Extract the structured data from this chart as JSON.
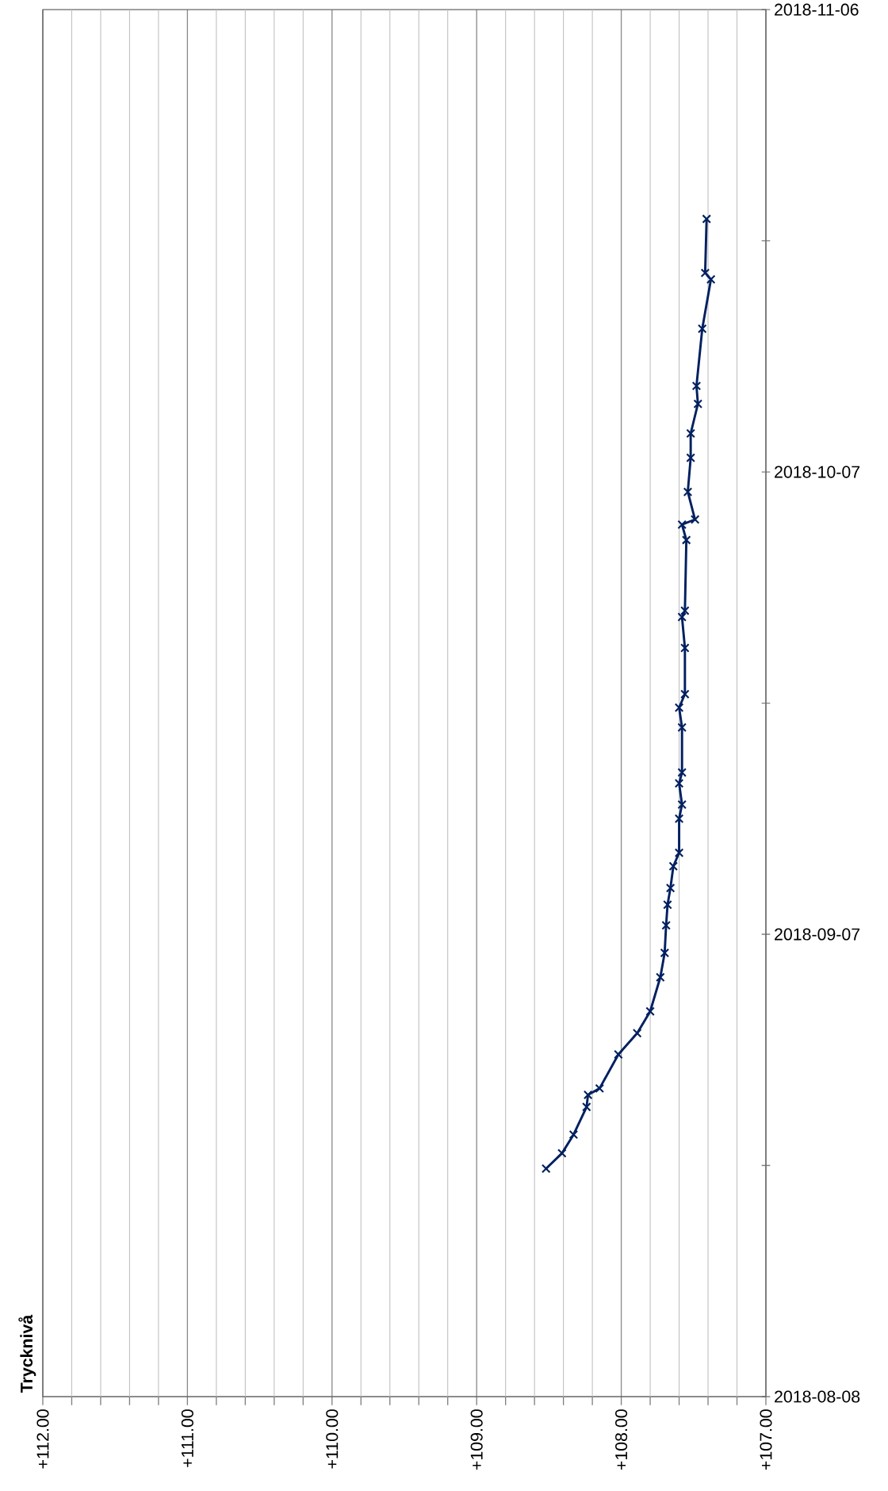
{
  "chart_data": {
    "type": "line",
    "orientation": "horizontal",
    "ylabel": "Trycknivå",
    "x": [
      "2018-08-22T19:00",
      "2018-08-23T19:00",
      "2018-08-25T00:00",
      "2018-08-26T19:00",
      "2018-08-27T14:00",
      "2018-08-28T00:00",
      "2018-08-30T05:00",
      "2018-08-31T14:00",
      "2018-09-02T00:00",
      "2018-09-04T05:00",
      "2018-09-05T19:00",
      "2018-09-07T14:00",
      "2018-09-08T22:00",
      "2018-09-10T00:00",
      "2018-09-11T10:00",
      "2018-09-12T07:00",
      "2018-09-14T12:00",
      "2018-09-15T10:00",
      "2018-09-16T19:00",
      "2018-09-17T12:00",
      "2018-09-20T10:00",
      "2018-09-21T17:00",
      "2018-09-22T14:00",
      "2018-09-25T14:00",
      "2018-09-27T14:00",
      "2018-09-28T00:00",
      "2018-10-02T14:00",
      "2018-10-03T14:00",
      "2018-10-03T22:00",
      "2018-10-05T17:00",
      "2018-10-07T22:00",
      "2018-10-09T12:00",
      "2018-10-11T10:00",
      "2018-10-12T14:00",
      "2018-10-16T07:00",
      "2018-10-19T12:00",
      "2018-10-19T22:00",
      "2018-10-23T10:00"
    ],
    "series": [
      {
        "color": "#002060",
        "values": [
          108.52,
          108.41,
          108.33,
          108.24,
          108.23,
          108.15,
          108.02,
          107.89,
          107.8,
          107.73,
          107.7,
          107.69,
          107.68,
          107.66,
          107.64,
          107.6,
          107.6,
          107.58,
          107.6,
          107.58,
          107.58,
          107.6,
          107.56,
          107.56,
          107.58,
          107.56,
          107.55,
          107.58,
          107.49,
          107.54,
          107.52,
          107.52,
          107.47,
          107.48,
          107.44,
          107.38,
          107.42,
          107.41
        ]
      }
    ],
    "ylim": [
      "2018-08-08",
      "2018-11-06"
    ],
    "yticks": [
      {
        "value": "2018-08-08",
        "label": "2018-08-08"
      },
      {
        "value": "2018-08-23",
        "label": null
      },
      {
        "value": "2018-09-07",
        "label": "2018-09-07"
      },
      {
        "value": "2018-09-22",
        "label": null
      },
      {
        "value": "2018-10-07",
        "label": "2018-10-07"
      },
      {
        "value": "2018-10-22",
        "label": null
      },
      {
        "value": "2018-11-06",
        "label": "2018-11-06"
      }
    ],
    "xlim": [
      112,
      107
    ],
    "xticks": [
      {
        "value": 112,
        "label": "+112.00"
      },
      {
        "value": 111.8,
        "label": null
      },
      {
        "value": 111.6,
        "label": null
      },
      {
        "value": 111.4,
        "label": null
      },
      {
        "value": 111.2,
        "label": null
      },
      {
        "value": 111,
        "label": "+111.00"
      },
      {
        "value": 110.8,
        "label": null
      },
      {
        "value": 110.6,
        "label": null
      },
      {
        "value": 110.4,
        "label": null
      },
      {
        "value": 110.2,
        "label": null
      },
      {
        "value": 110,
        "label": "+110.00"
      },
      {
        "value": 109.8,
        "label": null
      },
      {
        "value": 109.6,
        "label": null
      },
      {
        "value": 109.4,
        "label": null
      },
      {
        "value": 109.2,
        "label": null
      },
      {
        "value": 109,
        "label": "+109.00"
      },
      {
        "value": 108.8,
        "label": null
      },
      {
        "value": 108.6,
        "label": null
      },
      {
        "value": 108.4,
        "label": null
      },
      {
        "value": 108.2,
        "label": null
      },
      {
        "value": 108,
        "label": "+108.00"
      },
      {
        "value": 107.8,
        "label": null
      },
      {
        "value": 107.6,
        "label": null
      },
      {
        "value": 107.4,
        "label": null
      },
      {
        "value": 107.2,
        "label": null
      },
      {
        "value": 107,
        "label": "+107.00"
      }
    ],
    "grid": "x",
    "marker": "cross",
    "line_style": "solid"
  }
}
